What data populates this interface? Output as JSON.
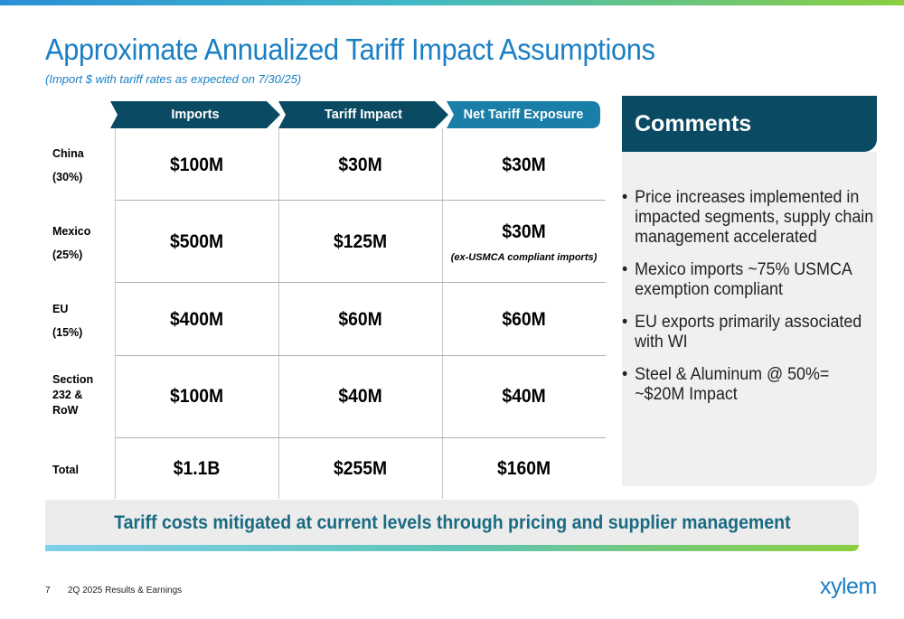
{
  "title": "Approximate Annualized Tariff Impact Assumptions",
  "subtitle": "(Import $ with tariff rates as expected on 7/30/25)",
  "table": {
    "headers": [
      "Imports",
      "Tariff Impact",
      "Net Tariff Exposure"
    ],
    "rows": [
      {
        "label_line1": "China",
        "label_line2": "(30%)",
        "imports": "$100M",
        "tariff_impact": "$30M",
        "net_exposure": "$30M",
        "note": ""
      },
      {
        "label_line1": "Mexico",
        "label_line2": "(25%)",
        "imports": "$500M",
        "tariff_impact": "$125M",
        "net_exposure": "$30M",
        "note": "(ex-USMCA compliant imports)"
      },
      {
        "label_line1": "EU",
        "label_line2": "(15%)",
        "imports": "$400M",
        "tariff_impact": "$60M",
        "net_exposure": "$60M",
        "note": ""
      },
      {
        "label_line1": "Section",
        "label_line2": "232 &",
        "label_line3": "RoW",
        "imports": "$100M",
        "tariff_impact": "$40M",
        "net_exposure": "$40M",
        "note": ""
      },
      {
        "label_line1": "Total",
        "imports": "$1.1B",
        "tariff_impact": "$255M",
        "net_exposure": "$160M",
        "note": ""
      }
    ]
  },
  "comments": {
    "heading": "Comments",
    "items": [
      "Price increases implemented in impacted segments, supply chain management accelerated",
      "Mexico imports ~75% USMCA exemption compliant",
      "EU exports primarily associated with WI",
      "Steel & Aluminum @ 50%= ~$20M Impact"
    ]
  },
  "banner": "Tariff costs mitigated at current levels through pricing and supplier management",
  "footer": {
    "page_number": "7",
    "text": "2Q 2025 Results & Earnings"
  },
  "logo": "xylem",
  "colors": {
    "title_blue": "#1a7fc4",
    "header_navy": "#0b4a63",
    "header_teal": "#1a7fa8",
    "banner_text": "#1a6a82"
  }
}
